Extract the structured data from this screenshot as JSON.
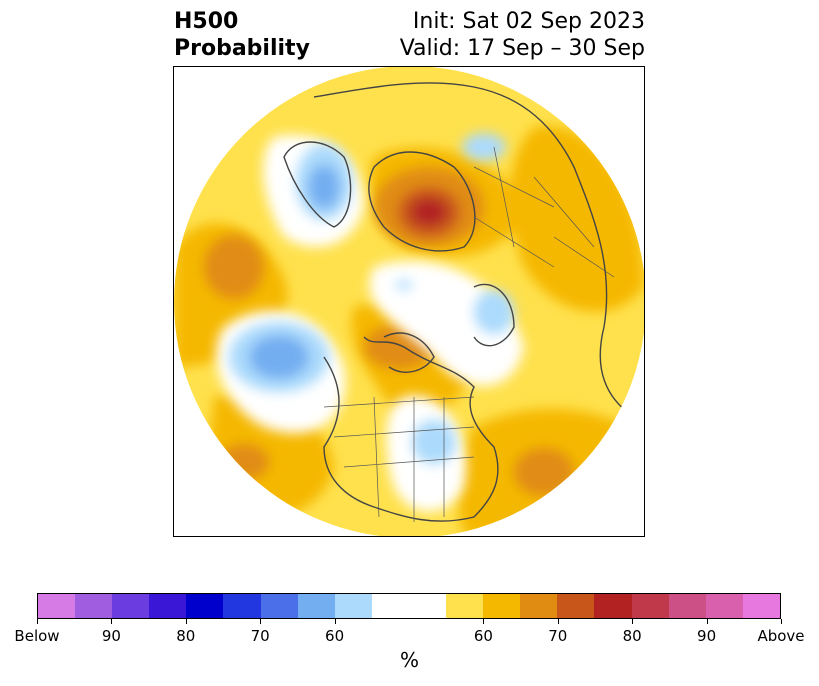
{
  "title": {
    "variable": "H500",
    "kind": "Probability",
    "init": "Init: Sat 02 Sep 2023",
    "valid": "Valid: 17 Sep – 30 Sep"
  },
  "map": {
    "projection": "north-polar-stereographic",
    "region": "Northern Hemisphere",
    "background": "#ffffff",
    "border_color": "#444444"
  },
  "colorbar": {
    "unit": "%",
    "labels": [
      "Below",
      "90",
      "80",
      "70",
      "60",
      "60",
      "70",
      "80",
      "90",
      "Above"
    ],
    "colors": [
      "#d67ae6",
      "#a05de0",
      "#6b3de0",
      "#3a17d6",
      "#0000cc",
      "#2337e0",
      "#4a6fe8",
      "#73aef1",
      "#abdafc",
      "#ffffff",
      "#ffe14d",
      "#f5b800",
      "#e08c12",
      "#c8561a",
      "#b22222",
      "#c0394b",
      "#cc4f86",
      "#d860ac",
      "#e678e0"
    ]
  }
}
